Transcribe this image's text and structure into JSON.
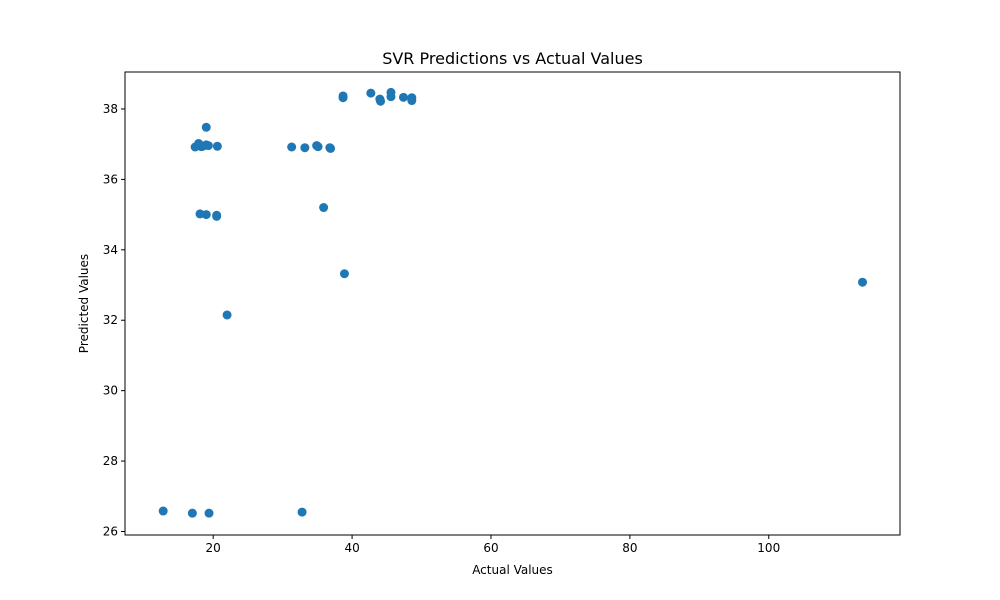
{
  "chart_data": {
    "type": "scatter",
    "title": "SVR Predictions vs Actual Values",
    "xlabel": "Actual Values",
    "ylabel": "Predicted Values",
    "xlim": [
      7.3,
      118.9
    ],
    "ylim": [
      25.9,
      39.05
    ],
    "xticks": [
      20,
      40,
      60,
      80,
      100
    ],
    "yticks": [
      26,
      28,
      30,
      32,
      34,
      36,
      38
    ],
    "grid": false,
    "marker_color": "#1f77b4",
    "points": [
      {
        "x": 12.8,
        "y": 26.58
      },
      {
        "x": 17.0,
        "y": 26.52
      },
      {
        "x": 19.4,
        "y": 26.52
      },
      {
        "x": 32.8,
        "y": 26.55
      },
      {
        "x": 22.0,
        "y": 32.15
      },
      {
        "x": 38.9,
        "y": 33.32
      },
      {
        "x": 113.5,
        "y": 33.08
      },
      {
        "x": 35.9,
        "y": 35.2
      },
      {
        "x": 18.1,
        "y": 35.02
      },
      {
        "x": 19.0,
        "y": 35.0
      },
      {
        "x": 20.5,
        "y": 34.98
      },
      {
        "x": 20.5,
        "y": 34.95
      },
      {
        "x": 17.4,
        "y": 36.92
      },
      {
        "x": 17.9,
        "y": 37.02
      },
      {
        "x": 18.3,
        "y": 36.93
      },
      {
        "x": 18.6,
        "y": 36.95
      },
      {
        "x": 19.0,
        "y": 36.98
      },
      {
        "x": 19.3,
        "y": 36.96
      },
      {
        "x": 20.6,
        "y": 36.94
      },
      {
        "x": 19.0,
        "y": 37.48
      },
      {
        "x": 31.3,
        "y": 36.92
      },
      {
        "x": 33.2,
        "y": 36.9
      },
      {
        "x": 34.9,
        "y": 36.96
      },
      {
        "x": 35.1,
        "y": 36.93
      },
      {
        "x": 36.8,
        "y": 36.9
      },
      {
        "x": 36.9,
        "y": 36.88
      },
      {
        "x": 38.7,
        "y": 38.37
      },
      {
        "x": 38.7,
        "y": 38.32
      },
      {
        "x": 42.7,
        "y": 38.45
      },
      {
        "x": 44.0,
        "y": 38.28
      },
      {
        "x": 44.1,
        "y": 38.22
      },
      {
        "x": 45.6,
        "y": 38.47
      },
      {
        "x": 45.6,
        "y": 38.35
      },
      {
        "x": 47.4,
        "y": 38.33
      },
      {
        "x": 48.6,
        "y": 38.32
      },
      {
        "x": 48.6,
        "y": 38.24
      }
    ]
  }
}
